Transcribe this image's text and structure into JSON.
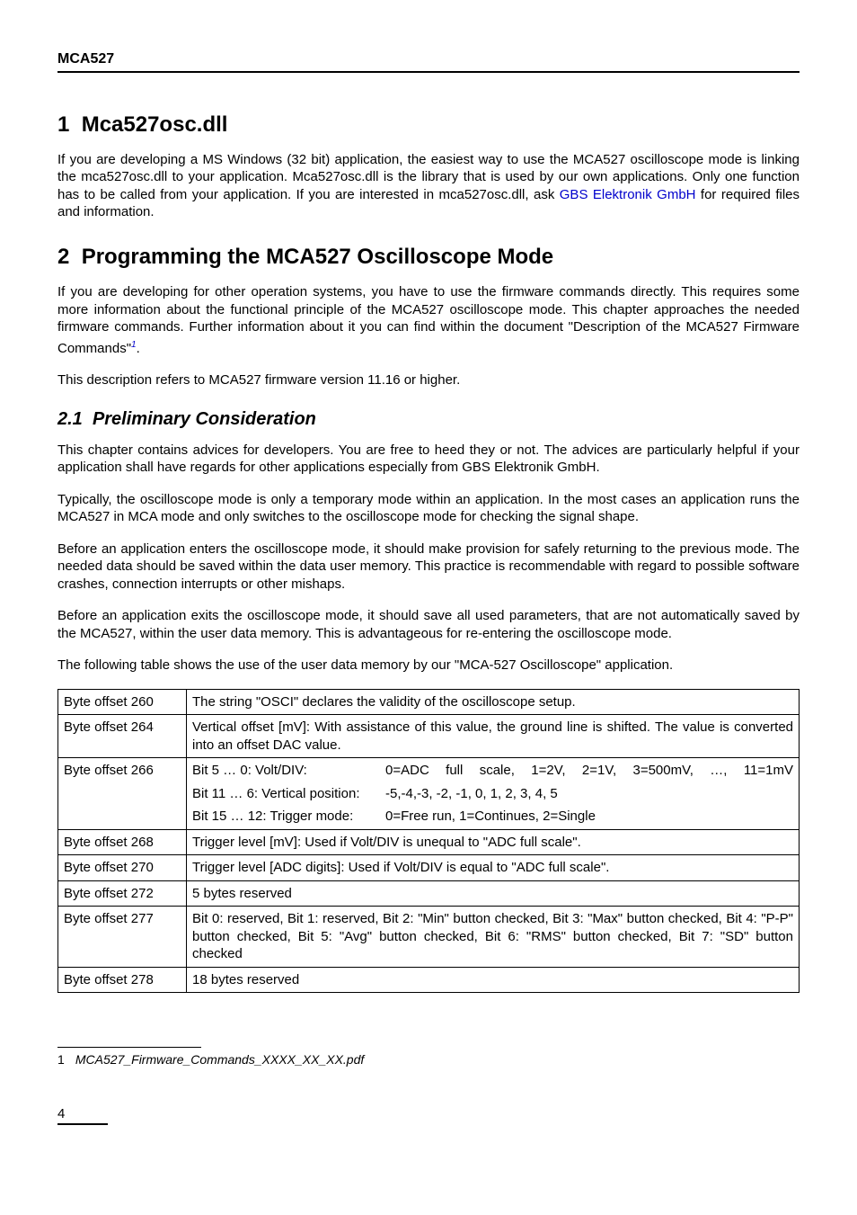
{
  "header": {
    "title": "MCA527"
  },
  "section1": {
    "number": "1",
    "title": "Mca527osc.dll",
    "p1a": "If you are developing a MS Windows (32 bit) application, the easiest way to use the MCA527 oscilloscope mode is linking the mca527osc.dll to your application. Mca527osc.dll is the library that is used by our own applications. Only one function has to be called from your application. If you are interested in mca527osc.dll, ask ",
    "p1_link": "GBS Elektronik GmbH",
    "p1b": " for required files and information."
  },
  "section2": {
    "number": "2",
    "title": "Programming the MCA527 Oscilloscope Mode",
    "p1a": "If you are developing for other operation systems, you have to use the firmware commands directly. This requires some more information about the functional principle of the MCA527 oscilloscope mode. This chapter approaches the needed firmware commands. Further information about it you can find within the document \"Description of the MCA527 Firmware Commands\"",
    "fnref": "1",
    "p1b": ".",
    "p2": "This description refers to MCA527 firmware version 11.16 or higher."
  },
  "section21": {
    "number": "2.1",
    "title": "Preliminary Consideration",
    "p1": "This chapter contains advices for developers. You are free to heed they or not. The advices are particularly helpful if your application shall have regards for other applications especially from GBS Elektronik GmbH.",
    "p2": "Typically, the oscilloscope mode is only a temporary mode within an application. In the most cases an application runs the MCA527 in MCA mode and only switches to the oscilloscope mode for checking the signal shape.",
    "p3": "Before an application enters the oscilloscope mode, it should make provision for safely returning to the previous mode. The needed data should be saved within the data user memory. This practice is recommendable with regard to possible software crashes, connection interrupts or other mishaps.",
    "p4": "Before an application exits the oscilloscope mode, it should save all used parameters, that are not automatically saved by the MCA527, within the user data memory. This is advantageous for re-entering the oscilloscope mode.",
    "p5": "The following table shows the use of the user data memory by our \"MCA-527 Oscilloscope\" application."
  },
  "table": {
    "rows": [
      {
        "key": "Byte offset 260",
        "type": "plain",
        "value": "The string \"OSCI\" declares the validity of the oscilloscope setup."
      },
      {
        "key": "Byte offset 264",
        "type": "plain",
        "value": "Vertical offset [mV]: With assistance of this value, the ground line is shifted. The value is converted into an offset DAC value."
      },
      {
        "key": "Byte offset 266",
        "type": "bitlines",
        "lines": [
          {
            "label": "Bit 5 … 0:    Volt/DIV:",
            "value": "0=ADC full scale, 1=2V, 2=1V, 3=500mV, …, 11=1mV",
            "first": true
          },
          {
            "label": "Bit 11 … 6:  Vertical position:",
            "value": "-5,-4,-3, -2, -1, 0, 1, 2, 3, 4, 5"
          },
          {
            "label": "Bit 15 … 12: Trigger mode:",
            "value": "0=Free run, 1=Continues, 2=Single"
          }
        ]
      },
      {
        "key": "Byte offset 268",
        "type": "plain",
        "value": "Trigger level [mV]: Used if Volt/DIV is unequal to \"ADC full scale\"."
      },
      {
        "key": "Byte offset 270",
        "type": "plain",
        "value": "Trigger level [ADC digits]: Used if Volt/DIV is equal to \"ADC full scale\"."
      },
      {
        "key": "Byte offset 272",
        "type": "plain",
        "value": "5 bytes reserved"
      },
      {
        "key": "Byte offset 277",
        "type": "plain",
        "value": "Bit 0: reserved, Bit 1: reserved, Bit 2: \"Min\" button checked, Bit 3: \"Max\" button checked, Bit 4: \"P-P\" button checked, Bit 5: \"Avg\" button checked, Bit 6: \"RMS\" button checked, Bit 7: \"SD\" button checked"
      },
      {
        "key": "Byte offset 278",
        "type": "plain",
        "value": "18 bytes reserved"
      }
    ]
  },
  "footnote": {
    "num": "1",
    "text": "MCA527_Firmware_Commands_XXXX_XX_XX.pdf"
  },
  "pagenum": "4"
}
